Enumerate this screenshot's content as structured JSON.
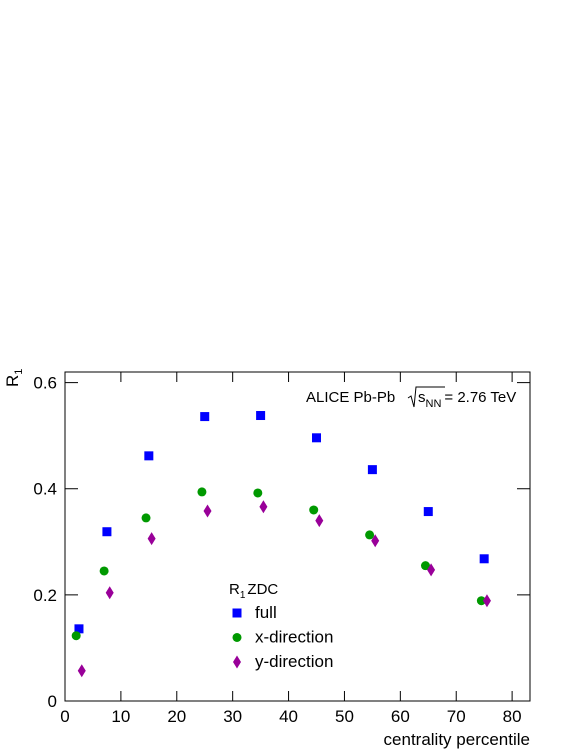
{
  "chart_data": {
    "type": "scatter",
    "x_label": "centrality percentile",
    "y_label": {
      "text": "R",
      "subscript": "1"
    },
    "annotation": {
      "prefix": "ALICE Pb-Pb",
      "radicand": "s",
      "subscript": "NN",
      "suffix": "= 2.76 TeV"
    },
    "legend_title": {
      "text": "R",
      "subscript": "1",
      "suffix": "ZDC"
    },
    "xlim": [
      0,
      83.2
    ],
    "ylim": [
      0,
      0.62
    ],
    "xticks": [
      0,
      10,
      20,
      30,
      40,
      50,
      60,
      70,
      80
    ],
    "yticks": [
      0,
      0.2,
      0.4,
      0.6
    ],
    "series": [
      {
        "name": "full",
        "color": "#0000ff",
        "marker": "square",
        "x": [
          2.5,
          7.5,
          15,
          25,
          35,
          45,
          55,
          65,
          75
        ],
        "values": [
          0.136,
          0.319,
          0.462,
          0.536,
          0.538,
          0.496,
          0.436,
          0.357,
          0.268
        ]
      },
      {
        "name": "x-direction",
        "color": "#009900",
        "marker": "circle",
        "x": [
          2,
          7,
          14.5,
          24.5,
          34.5,
          44.5,
          54.5,
          64.5,
          74.5
        ],
        "values": [
          0.123,
          0.245,
          0.345,
          0.394,
          0.392,
          0.36,
          0.313,
          0.255,
          0.189
        ]
      },
      {
        "name": "y-direction",
        "color": "#990099",
        "marker": "diamond",
        "x": [
          3,
          8,
          15.5,
          25.5,
          35.5,
          45.5,
          55.5,
          65.5,
          75.5
        ],
        "values": [
          0.057,
          0.204,
          0.306,
          0.358,
          0.366,
          0.34,
          0.302,
          0.247,
          0.189
        ]
      }
    ]
  }
}
